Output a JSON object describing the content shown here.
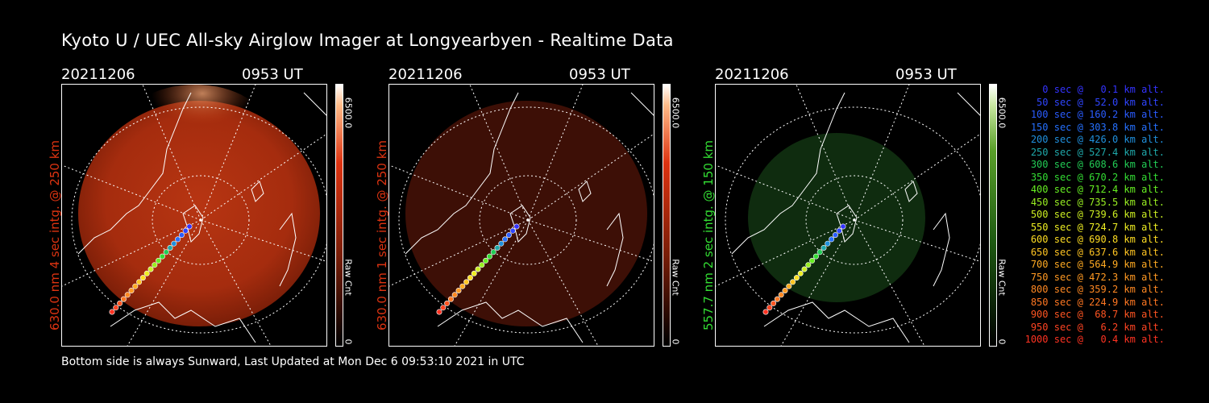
{
  "title": "Kyoto U / UEC All-sky Airglow Imager at Longyearbyen - Realtime Data",
  "footer": "Bottom side is always Sunward, Last Updated at Mon Dec  6 09:53:10 2021 in UTC",
  "panels": [
    {
      "date": "20211206",
      "time": "0953 UT",
      "ylabel": "630.0 nm 4 sec intg. @ 250 km",
      "color": "#dd3311",
      "cbar_max": "6500.0",
      "cbar_min": "0",
      "cbar_label": "Raw Cnt"
    },
    {
      "date": "20211206",
      "time": "0953 UT",
      "ylabel": "630.0 nm 1 sec intg. @ 250 km",
      "color": "#dd3311",
      "cbar_max": "6500.0",
      "cbar_min": "0",
      "cbar_label": "Raw Cnt"
    },
    {
      "date": "20211206",
      "time": "0953 UT",
      "ylabel": "557.7 nm 2 sec intg. @ 150 km",
      "color": "#33dd33",
      "cbar_max": "6500.0",
      "cbar_min": "0",
      "cbar_label": "Raw Cnt"
    }
  ],
  "legend": [
    {
      "text": "0 sec @   0.1 km alt.",
      "color": "#3333ff"
    },
    {
      "text": "50 sec @  52.0 km alt.",
      "color": "#2f45ff"
    },
    {
      "text": "100 sec @ 160.2 km alt.",
      "color": "#2a5cff"
    },
    {
      "text": "150 sec @ 303.8 km alt.",
      "color": "#2570ff"
    },
    {
      "text": "200 sec @ 426.0 km alt.",
      "color": "#2090dd"
    },
    {
      "text": "250 sec @ 527.4 km alt.",
      "color": "#1fa8aa"
    },
    {
      "text": "300 sec @ 608.6 km alt.",
      "color": "#22cc55"
    },
    {
      "text": "350 sec @ 670.2 km alt.",
      "color": "#33dd33"
    },
    {
      "text": "400 sec @ 712.4 km alt.",
      "color": "#66ee22"
    },
    {
      "text": "450 sec @ 735.5 km alt.",
      "color": "#99ee22"
    },
    {
      "text": "500 sec @ 739.6 km alt.",
      "color": "#ccee22"
    },
    {
      "text": "550 sec @ 724.7 km alt.",
      "color": "#eeee22"
    },
    {
      "text": "600 sec @ 690.8 km alt.",
      "color": "#ffdd22"
    },
    {
      "text": "650 sec @ 637.6 km alt.",
      "color": "#ffc422"
    },
    {
      "text": "700 sec @ 564.9 km alt.",
      "color": "#ffaa22"
    },
    {
      "text": "750 sec @ 472.3 km alt.",
      "color": "#ff9922"
    },
    {
      "text": "800 sec @ 359.2 km alt.",
      "color": "#ff8822"
    },
    {
      "text": "850 sec @ 224.9 km alt.",
      "color": "#ff7722"
    },
    {
      "text": "900 sec @  68.7 km alt.",
      "color": "#ff5522"
    },
    {
      "text": "950 sec @   6.2 km alt.",
      "color": "#ff4422"
    },
    {
      "text": "1000 sec @   0.4 km alt.",
      "color": "#ff3322"
    }
  ]
}
